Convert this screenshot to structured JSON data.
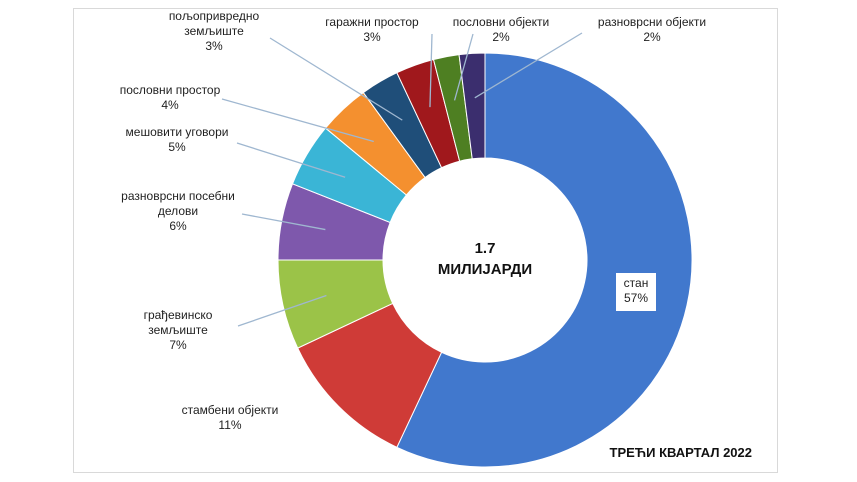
{
  "chart_data": {
    "type": "pie",
    "center_value": "1.7",
    "center_unit": "МИЛИЈАРДИ",
    "period": "ТРЕЋИ КВАРТАЛ 2022",
    "legend": "none",
    "slices": [
      {
        "name": "стан",
        "value": 57,
        "label": "57%",
        "color": "#4178CD"
      },
      {
        "name": "стамбени објекти",
        "value": 11,
        "label": "11%",
        "color": "#CF3B37"
      },
      {
        "name": "грађевинско земљиште",
        "value": 7,
        "label": "7%",
        "color": "#9BC348"
      },
      {
        "name": "разноврсни посебни делови",
        "value": 6,
        "label": "6%",
        "color": "#7E58AC"
      },
      {
        "name": "мешовити уговори",
        "value": 5,
        "label": "5%",
        "color": "#3AB5D6"
      },
      {
        "name": "пословни простор",
        "value": 4,
        "label": "4%",
        "color": "#F4902F"
      },
      {
        "name": "пољопривредно земљиште",
        "value": 3,
        "label": "3%",
        "color": "#1F4E79"
      },
      {
        "name": "гаражни простор",
        "value": 3,
        "label": "3%",
        "color": "#A0181C"
      },
      {
        "name": "пословни објекти",
        "value": 2,
        "label": "2%",
        "color": "#4E7F22"
      },
      {
        "name": "разноврсни објекти",
        "value": 2,
        "label": "2%",
        "color": "#3B2E6E"
      }
    ]
  }
}
